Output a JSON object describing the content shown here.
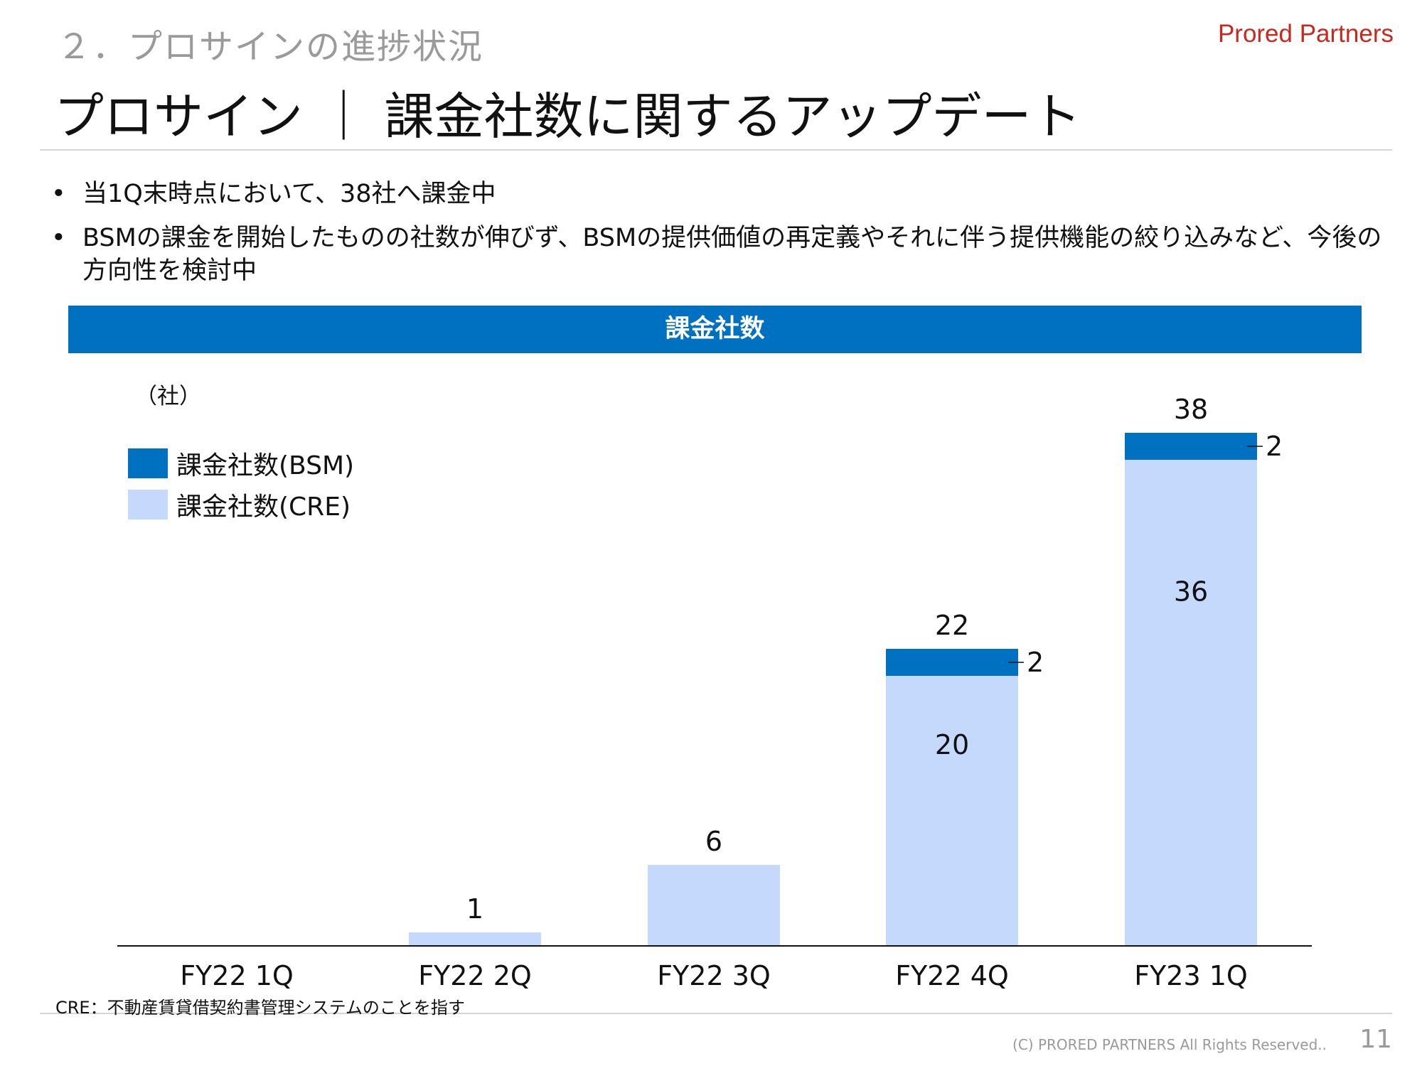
{
  "header": {
    "section": "２．プロサインの進捗状況",
    "brand": "Prored Partners",
    "title": "プロサイン ｜ 課金社数に関するアップデート"
  },
  "bullets": [
    {
      "marker": "•",
      "text": "当1Q末時点において、38社へ課金中"
    },
    {
      "marker": "•",
      "text": "BSMの課金を開始したものの社数が伸びず、BSMの提供価値の再定義やそれに伴う提供機能の絞り込みなど、今後の方向性を検討中"
    }
  ],
  "chart_header": "課金社数",
  "chart_unit": "（社）",
  "legend": [
    {
      "label": "課金社数(BSM)",
      "color": "#0070c0"
    },
    {
      "label": "課金社数(CRE)",
      "color": "#c5d9fc"
    }
  ],
  "chart_data": {
    "type": "bar",
    "stacked": true,
    "categories": [
      "FY22 1Q",
      "FY22 2Q",
      "FY22 3Q",
      "FY22 4Q",
      "FY23 1Q"
    ],
    "series": [
      {
        "name": "課金社数(CRE)",
        "values": [
          0,
          1,
          6,
          20,
          36
        ],
        "color": "#c5d9fc"
      },
      {
        "name": "課金社数(BSM)",
        "values": [
          0,
          0,
          0,
          2,
          2
        ],
        "color": "#0070c0"
      }
    ],
    "totals": [
      null,
      1,
      6,
      22,
      38
    ],
    "ylabel": "（社）",
    "ylim": [
      0,
      38
    ],
    "grid": false,
    "legend_position": "top-left"
  },
  "footnote": "CRE：不動産賃貸借契約書管理システムのことを指す",
  "copyright": "(C)  PRORED PARTNERS All Rights Reserved..",
  "page_number": "11"
}
